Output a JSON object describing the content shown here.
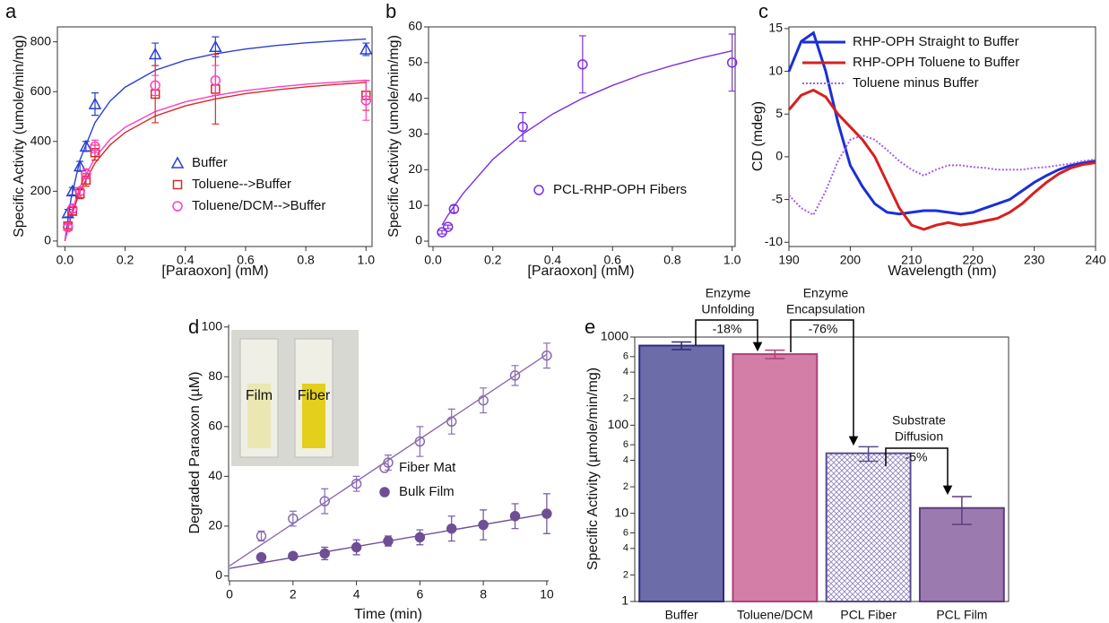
{
  "chart_data": [
    {
      "type": "scatter",
      "panel_label": "a",
      "x_label": "[Paraoxon] (mM)",
      "y_label": "Specific Activity (umole/min/mg)",
      "xlim": [
        -0.025,
        1.02
      ],
      "ylim": [
        -22,
        860
      ],
      "xticks": [
        {
          "value": 0,
          "label": "0.0"
        },
        0.2,
        0.4,
        0.6,
        0.8,
        {
          "value": 1,
          "label": "1.0"
        }
      ],
      "yticks": [
        0,
        200,
        400,
        600,
        800
      ],
      "series": [
        {
          "name": "Buffer",
          "color": "#2a3fd0",
          "marker": "triangle",
          "filled": false,
          "x": [
            0.01,
            0.025,
            0.05,
            0.07,
            0.1,
            0.3,
            0.5,
            1
          ],
          "values": [
            112,
            200,
            300,
            380,
            550,
            750,
            780,
            770
          ],
          "errors": [
            15,
            15,
            20,
            20,
            45,
            45,
            40,
            25
          ],
          "fit_x": [
            0,
            0.02,
            0.05,
            0.1,
            0.15,
            0.2,
            0.3,
            0.4,
            0.5,
            0.6,
            0.7,
            0.8,
            0.9,
            1
          ],
          "fit_values": [
            0,
            168,
            326,
            476,
            562,
            618,
            686,
            726,
            752,
            771,
            785,
            796,
            804,
            811
          ]
        },
        {
          "name": "Toluene-->Buffer",
          "color": "#d42a2a",
          "marker": "square",
          "filled": false,
          "x": [
            0.01,
            0.025,
            0.05,
            0.07,
            0.1,
            0.3,
            0.5,
            1
          ],
          "values": [
            60,
            120,
            190,
            245,
            355,
            590,
            610,
            585
          ],
          "errors": [
            10,
            15,
            20,
            25,
            30,
            115,
            140,
            60
          ],
          "fit_x": [
            0,
            0.02,
            0.05,
            0.1,
            0.15,
            0.2,
            0.3,
            0.4,
            0.5,
            0.6,
            0.7,
            0.8,
            0.9,
            1
          ],
          "fit_values": [
            0,
            96,
            200,
            313,
            386,
            436,
            502,
            543,
            571,
            592,
            607,
            619,
            629,
            637
          ]
        },
        {
          "name": "Toluene/DCM-->Buffer",
          "color": "#ff3fbf",
          "marker": "circle",
          "filled": false,
          "x": [
            0.01,
            0.025,
            0.05,
            0.07,
            0.1,
            0.3,
            0.5,
            1
          ],
          "values": [
            55,
            130,
            200,
            270,
            380,
            625,
            645,
            565
          ],
          "errors": [
            10,
            15,
            15,
            20,
            25,
            40,
            60,
            80
          ],
          "fit_x": [
            0,
            0.02,
            0.05,
            0.1,
            0.15,
            0.2,
            0.3,
            0.4,
            0.5,
            0.6,
            0.7,
            0.8,
            0.9,
            1
          ],
          "fit_values": [
            0,
            107,
            218,
            335,
            408,
            457,
            520,
            559,
            585,
            604,
            618,
            630,
            638,
            646
          ]
        }
      ]
    },
    {
      "type": "scatter",
      "panel_label": "b",
      "x_label": "[Paraoxon] (mM)",
      "y_label": "Specific Activity (umole/min/mg)",
      "xlim": [
        -0.015,
        1.01
      ],
      "ylim": [
        -1.5,
        60
      ],
      "xticks": [
        {
          "value": 0,
          "label": "0.0"
        },
        0.2,
        0.4,
        0.6,
        0.8,
        {
          "value": 1,
          "label": "1.0"
        }
      ],
      "yticks": [
        0,
        10,
        20,
        30,
        40,
        50,
        60
      ],
      "series": [
        {
          "name": "PCL-RHP-OPH Fibers",
          "color": "#7b2fe0",
          "marker": "circle",
          "filled": false,
          "x": [
            0.03,
            0.05,
            0.07,
            0.3,
            0.5,
            1
          ],
          "values": [
            2.5,
            4,
            9,
            32,
            49.5,
            50
          ],
          "errors": [
            0.5,
            0.5,
            1,
            4,
            8,
            8
          ],
          "fit_x": [
            0.03,
            0.05,
            0.1,
            0.2,
            0.3,
            0.4,
            0.5,
            0.6,
            0.7,
            0.8,
            0.9,
            1
          ],
          "fit_values": [
            4.5,
            7.3,
            13.3,
            22.9,
            30,
            35.6,
            40,
            43.6,
            46.7,
            49.2,
            51.4,
            53.3
          ]
        }
      ]
    },
    {
      "type": "line",
      "panel_label": "c",
      "x_label": "Wavelength (nm)",
      "y_label": "CD (mdeg)",
      "xlim": [
        190,
        240
      ],
      "ylim": [
        -10.5,
        15.2
      ],
      "xticks": [
        190,
        200,
        210,
        220,
        230,
        240
      ],
      "yticks": [
        -10,
        -5,
        0,
        5,
        10,
        15
      ],
      "x": [
        190,
        192,
        194,
        196,
        198,
        200,
        202,
        204,
        206,
        208,
        210,
        212,
        214,
        216,
        218,
        220,
        222,
        224,
        226,
        228,
        230,
        232,
        234,
        236,
        238,
        240
      ],
      "series": [
        {
          "name": "RHP-OPH Straight to Buffer",
          "color": "#1a2fd8",
          "style": "solid",
          "values": [
            10,
            13.5,
            14.5,
            10,
            4,
            -1,
            -3.5,
            -5.5,
            -6.5,
            -6.7,
            -6.5,
            -6.3,
            -6.3,
            -6.5,
            -6.7,
            -6.5,
            -6,
            -5.5,
            -5,
            -4,
            -3,
            -2.2,
            -1.5,
            -1,
            -0.7,
            -0.5
          ]
        },
        {
          "name": "RHP-OPH Toluene to Buffer",
          "color": "#d62020",
          "style": "solid",
          "values": [
            5.5,
            7.2,
            7.8,
            7,
            5,
            3.5,
            2,
            0,
            -3,
            -6,
            -8,
            -8.5,
            -8,
            -7.7,
            -8,
            -7.8,
            -7.5,
            -7.2,
            -6.5,
            -5.5,
            -4.2,
            -3,
            -2,
            -1.3,
            -0.9,
            -0.7
          ]
        },
        {
          "name": "Toluene minus Buffer",
          "color": "#a45ee8",
          "style": "dotted",
          "values": [
            -4.5,
            -6,
            -6.8,
            -4,
            -0.5,
            2,
            2.5,
            2,
            0.8,
            -0.5,
            -1.5,
            -2.2,
            -1.5,
            -1,
            -1,
            -1.2,
            -1.3,
            -1.5,
            -1.5,
            -1.5,
            -1.3,
            -1.2,
            -1,
            -0.8,
            -0.5,
            -0.3
          ]
        }
      ]
    },
    {
      "type": "scatter",
      "panel_label": "d",
      "x_label": "Time (min)",
      "y_label": "Degraded Paraoxon (µM)",
      "xlim": [
        -0.03,
        10.06
      ],
      "ylim": [
        -2,
        101
      ],
      "xticks": [
        0,
        2,
        4,
        6,
        8,
        10
      ],
      "yticks": [
        0,
        20,
        40,
        60,
        80,
        100
      ],
      "inset_labels": [
        "Film",
        "Fiber"
      ],
      "series": [
        {
          "name": "Fiber Mat",
          "color": "#8a6bb0",
          "marker": "circle",
          "filled": false,
          "x": [
            1,
            2,
            3,
            4,
            5,
            6,
            7,
            8,
            9,
            10
          ],
          "values": [
            16,
            23,
            30,
            37,
            45.5,
            54,
            62,
            70.5,
            80.5,
            88.5
          ],
          "errors": [
            2,
            3,
            5,
            3,
            3,
            6,
            5,
            5,
            4,
            5
          ],
          "fit_x": [
            0,
            10
          ],
          "fit_values": [
            4,
            89
          ]
        },
        {
          "name": "Bulk Film",
          "color": "#6e4f96",
          "marker": "circle",
          "filled": true,
          "x": [
            1,
            2,
            3,
            4,
            5,
            6,
            7,
            8,
            9,
            10
          ],
          "values": [
            7.5,
            8,
            9,
            11.5,
            14,
            15.5,
            19,
            20.5,
            24,
            25
          ],
          "errors": [
            1,
            1,
            2.5,
            3,
            2,
            3,
            5,
            6,
            5,
            8
          ],
          "fit_x": [
            0,
            10
          ],
          "fit_values": [
            3,
            25
          ]
        }
      ]
    },
    {
      "type": "bar",
      "panel_label": "e",
      "y_label": "Specific Activity (µmole/min/mg)",
      "log_y": true,
      "ylim": [
        1,
        1000
      ],
      "yticks": [
        1,
        2,
        4,
        6,
        10,
        {
          "value": 20,
          "label": "2"
        },
        {
          "value": 40,
          "label": "4"
        },
        {
          "value": 60,
          "label": "6"
        },
        100,
        {
          "value": 200,
          "label": "2"
        },
        {
          "value": 400,
          "label": "4"
        },
        {
          "value": 600,
          "label": "6"
        },
        1000
      ],
      "categories": [
        "Buffer",
        "Toluene/DCM",
        "PCL Fiber",
        "PCL Film"
      ],
      "values": [
        800,
        640,
        48,
        11.5
      ],
      "errors": [
        80,
        70,
        9,
        4
      ],
      "colors": [
        "#6c6ca8",
        "#d27ea6",
        "#8f7fc0",
        "#9b7ab0"
      ],
      "edge_colors": [
        "#2c2c80",
        "#b0407a",
        "#5a4a90",
        "#5e3c80"
      ],
      "hatched": [
        false,
        false,
        true,
        false
      ],
      "annotations": [
        {
          "lines": [
            "Enzyme",
            "Unfolding"
          ],
          "label": "-18%"
        },
        {
          "lines": [
            "Enzyme",
            "Encapsulation"
          ],
          "label": "-76%"
        },
        {
          "lines": [
            "Substrate",
            "Diffusion"
          ],
          "label": "-5%"
        }
      ]
    }
  ]
}
